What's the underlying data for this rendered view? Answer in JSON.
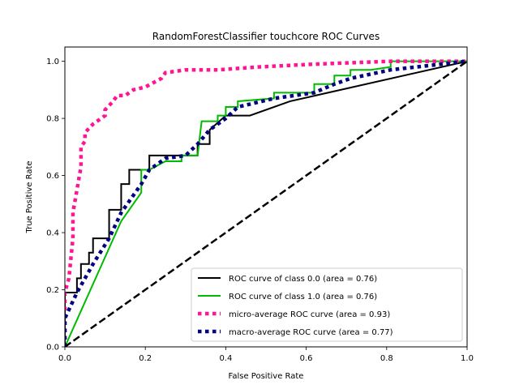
{
  "chart_data": {
    "type": "line",
    "title": "RandomForestClassifier touchcore ROC Curves",
    "xlabel": "False Positive Rate",
    "ylabel": "True Positive Rate",
    "xlim": [
      0.0,
      1.0
    ],
    "ylim": [
      0.0,
      1.05
    ],
    "x_ticks": [
      "0.0",
      "0.2",
      "0.4",
      "0.6",
      "0.8",
      "1.0"
    ],
    "y_ticks": [
      "0.0",
      "0.2",
      "0.4",
      "0.6",
      "0.8",
      "1.0"
    ],
    "grid": false,
    "legend_position": "lower-right",
    "series": [
      {
        "name": "ROC curve of class 0.0 (area = 0.76)",
        "color": "#000000",
        "style": "solid",
        "points": [
          [
            0.0,
            0.0
          ],
          [
            0.0,
            0.19
          ],
          [
            0.03,
            0.19
          ],
          [
            0.03,
            0.24
          ],
          [
            0.04,
            0.24
          ],
          [
            0.04,
            0.29
          ],
          [
            0.06,
            0.29
          ],
          [
            0.06,
            0.33
          ],
          [
            0.07,
            0.33
          ],
          [
            0.07,
            0.38
          ],
          [
            0.11,
            0.38
          ],
          [
            0.11,
            0.48
          ],
          [
            0.14,
            0.48
          ],
          [
            0.14,
            0.57
          ],
          [
            0.16,
            0.57
          ],
          [
            0.16,
            0.62
          ],
          [
            0.21,
            0.62
          ],
          [
            0.21,
            0.67
          ],
          [
            0.33,
            0.67
          ],
          [
            0.33,
            0.71
          ],
          [
            0.36,
            0.71
          ],
          [
            0.36,
            0.76
          ],
          [
            0.4,
            0.81
          ],
          [
            0.46,
            0.81
          ],
          [
            0.56,
            0.86
          ],
          [
            1.0,
            1.0
          ]
        ]
      },
      {
        "name": "ROC curve of class 1.0 (area = 0.76)",
        "color": "#00bb00",
        "style": "solid",
        "points": [
          [
            0.0,
            0.0
          ],
          [
            0.14,
            0.44
          ],
          [
            0.19,
            0.54
          ],
          [
            0.19,
            0.62
          ],
          [
            0.21,
            0.62
          ],
          [
            0.25,
            0.65
          ],
          [
            0.29,
            0.65
          ],
          [
            0.29,
            0.67
          ],
          [
            0.33,
            0.67
          ],
          [
            0.34,
            0.79
          ],
          [
            0.38,
            0.79
          ],
          [
            0.38,
            0.81
          ],
          [
            0.4,
            0.81
          ],
          [
            0.4,
            0.84
          ],
          [
            0.43,
            0.84
          ],
          [
            0.43,
            0.86
          ],
          [
            0.52,
            0.87
          ],
          [
            0.52,
            0.89
          ],
          [
            0.62,
            0.89
          ],
          [
            0.62,
            0.92
          ],
          [
            0.67,
            0.92
          ],
          [
            0.67,
            0.95
          ],
          [
            0.71,
            0.95
          ],
          [
            0.71,
            0.97
          ],
          [
            0.76,
            0.97
          ],
          [
            0.81,
            0.98
          ],
          [
            0.81,
            1.0
          ],
          [
            1.0,
            1.0
          ]
        ]
      },
      {
        "name": "micro-average ROC curve (area = 0.93)",
        "color": "#ff1493",
        "style": "dotted",
        "points": [
          [
            0.0,
            0.0
          ],
          [
            0.0,
            0.19
          ],
          [
            0.01,
            0.24
          ],
          [
            0.02,
            0.38
          ],
          [
            0.02,
            0.47
          ],
          [
            0.03,
            0.55
          ],
          [
            0.04,
            0.63
          ],
          [
            0.04,
            0.7
          ],
          [
            0.05,
            0.72
          ],
          [
            0.05,
            0.75
          ],
          [
            0.07,
            0.78
          ],
          [
            0.08,
            0.79
          ],
          [
            0.1,
            0.81
          ],
          [
            0.1,
            0.83
          ],
          [
            0.12,
            0.86
          ],
          [
            0.13,
            0.88
          ],
          [
            0.15,
            0.88
          ],
          [
            0.17,
            0.9
          ],
          [
            0.2,
            0.91
          ],
          [
            0.24,
            0.94
          ],
          [
            0.25,
            0.96
          ],
          [
            0.3,
            0.97
          ],
          [
            0.38,
            0.97
          ],
          [
            0.48,
            0.98
          ],
          [
            0.62,
            0.99
          ],
          [
            0.81,
            1.0
          ],
          [
            1.0,
            1.0
          ]
        ]
      },
      {
        "name": "macro-average ROC curve (area = 0.77)",
        "color": "#000080",
        "style": "dotted",
        "points": [
          [
            0.0,
            0.0
          ],
          [
            0.0,
            0.1
          ],
          [
            0.03,
            0.19
          ],
          [
            0.07,
            0.29
          ],
          [
            0.11,
            0.38
          ],
          [
            0.14,
            0.47
          ],
          [
            0.19,
            0.57
          ],
          [
            0.21,
            0.62
          ],
          [
            0.25,
            0.66
          ],
          [
            0.3,
            0.67
          ],
          [
            0.33,
            0.71
          ],
          [
            0.36,
            0.76
          ],
          [
            0.4,
            0.8
          ],
          [
            0.43,
            0.84
          ],
          [
            0.52,
            0.87
          ],
          [
            0.62,
            0.89
          ],
          [
            0.67,
            0.92
          ],
          [
            0.71,
            0.94
          ],
          [
            0.81,
            0.97
          ],
          [
            1.0,
            1.0
          ]
        ]
      },
      {
        "name": "",
        "color": "#000000",
        "style": "dashed",
        "points": [
          [
            0.0,
            0.0
          ],
          [
            1.0,
            1.0
          ]
        ]
      }
    ]
  }
}
